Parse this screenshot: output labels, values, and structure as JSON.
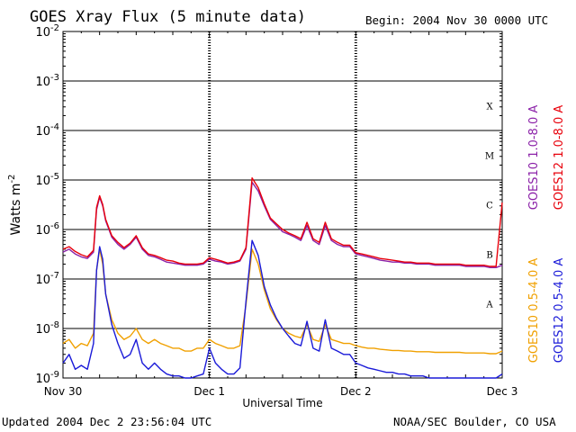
{
  "header": {
    "title": "GOES Xray Flux (5 minute data)",
    "begin": "Begin:  2004 Nov 30 0000 UTC"
  },
  "footer": {
    "updated": "Updated 2004 Dec  2 23:56:04 UTC",
    "credit": "NOAA/SEC Boulder, CO USA"
  },
  "chart_data": {
    "type": "line",
    "title": "GOES Xray Flux (5 minute data)",
    "xlabel": "Universal Time",
    "ylabel_base": "Watts m",
    "ylabel_exp": "-2",
    "x_ticks": [
      "Nov 30",
      "Dec 1",
      "Dec 2",
      "Dec 3"
    ],
    "xlim_hours": [
      0,
      72
    ],
    "y_scale": "log",
    "ylim": [
      1e-09,
      0.01
    ],
    "y_tick_base": "10",
    "y_tick_exps": [
      "-9",
      "-8",
      "-7",
      "-6",
      "-5",
      "-4",
      "-3",
      "-2"
    ],
    "flare_classes": [
      "A",
      "B",
      "C",
      "M",
      "X"
    ],
    "grid": true,
    "series": [
      {
        "name": "GOES10 1.0-8.0 A",
        "color": "#8b21a8",
        "x": [
          0,
          1,
          2,
          3,
          4,
          5,
          5.5,
          6,
          6.5,
          7,
          8,
          9,
          10,
          11,
          12,
          13,
          14,
          15,
          16,
          17,
          18,
          19,
          20,
          21,
          22,
          23,
          24,
          25,
          26,
          27,
          28,
          29,
          30,
          31,
          32,
          33,
          34,
          35,
          36,
          37,
          38,
          39,
          40,
          41,
          42,
          43,
          44,
          45,
          46,
          47,
          48,
          49,
          50,
          51,
          52,
          53,
          54,
          55,
          56,
          57,
          58,
          59,
          60,
          61,
          62,
          63,
          64,
          65,
          66,
          67,
          68,
          69,
          70,
          71,
          72
        ],
        "y": [
          3.5e-07,
          4e-07,
          3.2e-07,
          2.8e-07,
          2.6e-07,
          3.5e-07,
          2.5e-06,
          4.5e-06,
          3e-06,
          1.5e-06,
          7e-07,
          5e-07,
          4e-07,
          5e-07,
          7e-07,
          4e-07,
          3e-07,
          2.8e-07,
          2.5e-07,
          2.2e-07,
          2.1e-07,
          2e-07,
          1.9e-07,
          1.9e-07,
          1.9e-07,
          2e-07,
          2.5e-07,
          2.3e-07,
          2.2e-07,
          2e-07,
          2.1e-07,
          2.3e-07,
          4e-07,
          9e-06,
          6e-06,
          3e-06,
          1.6e-06,
          1.2e-06,
          9e-07,
          8e-07,
          7e-07,
          6e-07,
          1.2e-06,
          6e-07,
          5e-07,
          1.2e-06,
          6e-07,
          5e-07,
          4.5e-07,
          4.5e-07,
          3.2e-07,
          3e-07,
          2.8e-07,
          2.6e-07,
          2.4e-07,
          2.3e-07,
          2.2e-07,
          2.2e-07,
          2.1e-07,
          2.1e-07,
          2e-07,
          2e-07,
          2e-07,
          1.9e-07,
          1.9e-07,
          1.9e-07,
          1.9e-07,
          1.9e-07,
          1.8e-07,
          1.8e-07,
          1.8e-07,
          1.8e-07,
          1.7e-07,
          1.7e-07,
          1.9e-07
        ]
      },
      {
        "name": "GOES12 1.0-8.0 A",
        "color": "#e8000b",
        "x": [
          0,
          1,
          2,
          3,
          4,
          5,
          5.5,
          6,
          6.5,
          7,
          8,
          9,
          10,
          11,
          12,
          13,
          14,
          15,
          16,
          17,
          18,
          19,
          20,
          21,
          22,
          23,
          24,
          25,
          26,
          27,
          28,
          29,
          30,
          31,
          32,
          33,
          34,
          35,
          36,
          37,
          38,
          39,
          40,
          41,
          42,
          43,
          44,
          45,
          46,
          47,
          48,
          49,
          50,
          51,
          52,
          53,
          54,
          55,
          56,
          57,
          58,
          59,
          60,
          61,
          62,
          63,
          64,
          65,
          66,
          67,
          68,
          69,
          70,
          71,
          72
        ],
        "y": [
          4e-07,
          4.5e-07,
          3.6e-07,
          3.1e-07,
          2.8e-07,
          3.8e-07,
          2.8e-06,
          4.8e-06,
          3.2e-06,
          1.6e-06,
          7.5e-07,
          5.5e-07,
          4.3e-07,
          5.3e-07,
          7.5e-07,
          4.3e-07,
          3.2e-07,
          3e-07,
          2.7e-07,
          2.4e-07,
          2.3e-07,
          2.1e-07,
          2e-07,
          2e-07,
          2e-07,
          2.1e-07,
          2.7e-07,
          2.5e-07,
          2.3e-07,
          2.1e-07,
          2.2e-07,
          2.4e-07,
          4.3e-07,
          1.1e-05,
          7e-06,
          3.3e-06,
          1.7e-06,
          1.3e-06,
          1e-06,
          8.5e-07,
          7.5e-07,
          6.5e-07,
          1.4e-06,
          6.5e-07,
          5.5e-07,
          1.4e-06,
          6.5e-07,
          5.5e-07,
          4.8e-07,
          4.8e-07,
          3.4e-07,
          3.2e-07,
          3e-07,
          2.8e-07,
          2.6e-07,
          2.5e-07,
          2.4e-07,
          2.3e-07,
          2.2e-07,
          2.2e-07,
          2.1e-07,
          2.1e-07,
          2.1e-07,
          2e-07,
          2e-07,
          2e-07,
          2e-07,
          2e-07,
          1.9e-07,
          1.9e-07,
          1.9e-07,
          1.9e-07,
          1.8e-07,
          1.8e-07,
          3.5e-06
        ]
      },
      {
        "name": "GOES10 0.5-4.0 A",
        "color": "#f0a000",
        "x": [
          0,
          1,
          2,
          3,
          4,
          5,
          5.5,
          6,
          6.5,
          7,
          8,
          9,
          10,
          11,
          12,
          13,
          14,
          15,
          16,
          17,
          18,
          19,
          20,
          21,
          22,
          23,
          24,
          25,
          26,
          27,
          28,
          29,
          30,
          31,
          32,
          33,
          34,
          35,
          36,
          37,
          38,
          39,
          40,
          41,
          42,
          43,
          44,
          45,
          46,
          47,
          48,
          49,
          50,
          51,
          52,
          53,
          54,
          55,
          56,
          57,
          58,
          59,
          60,
          61,
          62,
          63,
          64,
          65,
          66,
          67,
          68,
          69,
          70,
          71,
          72
        ],
        "y": [
          5e-09,
          6e-09,
          4e-09,
          5e-09,
          4.5e-09,
          8e-09,
          1.5e-07,
          4e-07,
          2e-07,
          5e-08,
          1.5e-08,
          8e-09,
          6e-09,
          7e-09,
          1e-08,
          6e-09,
          5e-09,
          6e-09,
          5e-09,
          4.5e-09,
          4e-09,
          4e-09,
          3.5e-09,
          3.5e-09,
          4e-09,
          4e-09,
          6e-09,
          5e-09,
          4.5e-09,
          4e-09,
          4e-09,
          4.5e-09,
          3e-08,
          4e-07,
          2e-07,
          6e-08,
          2.5e-08,
          1.5e-08,
          1e-08,
          8e-09,
          7e-09,
          6.5e-09,
          1.2e-08,
          6e-09,
          5.5e-09,
          1.2e-08,
          6e-09,
          5.5e-09,
          5e-09,
          5e-09,
          4.5e-09,
          4.2e-09,
          4e-09,
          4e-09,
          3.8e-09,
          3.7e-09,
          3.6e-09,
          3.6e-09,
          3.5e-09,
          3.5e-09,
          3.4e-09,
          3.4e-09,
          3.4e-09,
          3.3e-09,
          3.3e-09,
          3.3e-09,
          3.3e-09,
          3.3e-09,
          3.2e-09,
          3.2e-09,
          3.2e-09,
          3.2e-09,
          3.1e-09,
          3.1e-09,
          3.5e-09
        ]
      },
      {
        "name": "GOES12 0.5-4.0 A",
        "color": "#1a1ad8",
        "x": [
          0,
          1,
          2,
          3,
          4,
          5,
          5.5,
          6,
          6.5,
          7,
          8,
          9,
          10,
          11,
          12,
          13,
          14,
          15,
          16,
          17,
          18,
          19,
          20,
          21,
          22,
          23,
          24,
          25,
          26,
          27,
          28,
          29,
          30,
          31,
          32,
          33,
          34,
          35,
          36,
          37,
          38,
          39,
          40,
          41,
          42,
          43,
          44,
          45,
          46,
          47,
          48,
          49,
          50,
          51,
          52,
          53,
          54,
          55,
          56,
          57,
          58,
          59,
          60,
          61,
          62,
          63,
          64,
          65,
          66,
          67,
          68,
          69,
          70,
          71,
          72
        ],
        "y": [
          2e-09,
          3e-09,
          1.5e-09,
          1.8e-09,
          1.5e-09,
          5e-09,
          1.5e-07,
          4.5e-07,
          2.5e-07,
          5e-08,
          1.2e-08,
          5e-09,
          2.5e-09,
          3e-09,
          6e-09,
          2e-09,
          1.5e-09,
          2e-09,
          1.5e-09,
          1.2e-09,
          1.1e-09,
          1.1e-09,
          1e-09,
          1e-09,
          1.1e-09,
          1.2e-09,
          4e-09,
          2e-09,
          1.5e-09,
          1.2e-09,
          1.2e-09,
          1.6e-09,
          3.5e-08,
          6e-07,
          3e-07,
          7e-08,
          3e-08,
          1.6e-08,
          1e-08,
          7e-09,
          5e-09,
          4.5e-09,
          1.4e-08,
          4e-09,
          3.5e-09,
          1.5e-08,
          4e-09,
          3.5e-09,
          3e-09,
          3e-09,
          2e-09,
          1.8e-09,
          1.6e-09,
          1.5e-09,
          1.4e-09,
          1.3e-09,
          1.3e-09,
          1.2e-09,
          1.2e-09,
          1.1e-09,
          1.1e-09,
          1.1e-09,
          1e-09,
          1e-09,
          1e-09,
          1e-09,
          1e-09,
          1e-09,
          1e-09,
          1e-09,
          1e-09,
          1e-09,
          1e-09,
          1e-09,
          1.2e-09
        ]
      }
    ]
  }
}
